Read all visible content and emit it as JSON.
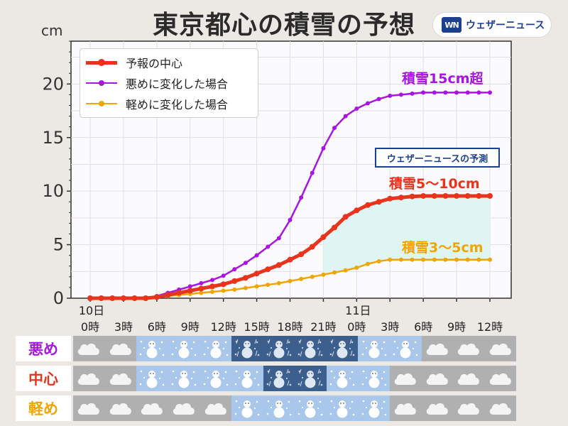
{
  "header": {
    "title": "東京都心の積雪の予想",
    "logo_mark": "WN",
    "logo_text": "ウェザーニュース"
  },
  "colors": {
    "center": "#e8341c",
    "heavy": "#a814e0",
    "light": "#f0a500",
    "fill": "#dff5f3",
    "badge": "#1d3f8f"
  },
  "badge": "ウェザーニュースの予測",
  "annotations": [
    {
      "id": "heavy",
      "text": "積雪15cm超",
      "color": "#a814e0"
    },
    {
      "id": "center",
      "text": "積雪5〜10cm",
      "color": "#e8341c"
    },
    {
      "id": "light",
      "text": "積雪3〜5cm",
      "color": "#f0a500"
    }
  ],
  "chart_data": {
    "type": "line",
    "ylabel": "cm",
    "ylim": [
      0,
      24
    ],
    "yticks": [
      0,
      5,
      10,
      15,
      20
    ],
    "xlim": [
      0,
      36
    ],
    "x_date_labels": [
      {
        "x": 0,
        "label": "10日"
      },
      {
        "x": 24,
        "label": "11日"
      }
    ],
    "x_ticks": [
      {
        "x": 0,
        "label": "0時"
      },
      {
        "x": 3,
        "label": "3時"
      },
      {
        "x": 6,
        "label": "6時"
      },
      {
        "x": 9,
        "label": "9時"
      },
      {
        "x": 12,
        "label": "12時"
      },
      {
        "x": 15,
        "label": "15時"
      },
      {
        "x": 18,
        "label": "18時"
      },
      {
        "x": 21,
        "label": "21時"
      },
      {
        "x": 24,
        "label": "0時"
      },
      {
        "x": 27,
        "label": "3時"
      },
      {
        "x": 30,
        "label": "6時"
      },
      {
        "x": 33,
        "label": "9時"
      },
      {
        "x": 36,
        "label": "12時"
      }
    ],
    "legend_position": "top-left",
    "grid": true,
    "series": [
      {
        "id": "center",
        "name": "予報の中心",
        "color": "#e8341c",
        "line_width": 5,
        "dot": 4,
        "x": [
          0,
          1,
          2,
          3,
          4,
          5,
          6,
          7,
          8,
          9,
          10,
          11,
          12,
          13,
          14,
          15,
          16,
          17,
          18,
          19,
          20,
          21,
          22,
          23,
          24,
          25,
          26,
          27,
          28,
          29,
          30,
          31,
          32,
          33,
          34,
          35,
          36
        ],
        "values": [
          0,
          0,
          0,
          0,
          0,
          0,
          0.1,
          0.3,
          0.5,
          0.7,
          0.9,
          1.1,
          1.3,
          1.6,
          1.9,
          2.3,
          2.7,
          3.1,
          3.6,
          4.1,
          4.8,
          5.7,
          6.6,
          7.6,
          8.2,
          8.7,
          9.0,
          9.3,
          9.4,
          9.5,
          9.55,
          9.55,
          9.55,
          9.55,
          9.55,
          9.55,
          9.55
        ]
      },
      {
        "id": "heavy",
        "name": "悪めに変化した場合",
        "color": "#a814e0",
        "line_width": 2.5,
        "dot": 3,
        "x": [
          0,
          1,
          2,
          3,
          4,
          5,
          6,
          7,
          8,
          9,
          10,
          11,
          12,
          13,
          14,
          15,
          16,
          17,
          18,
          19,
          20,
          21,
          22,
          23,
          24,
          25,
          26,
          27,
          28,
          29,
          30,
          31,
          32,
          33,
          34,
          35,
          36
        ],
        "values": [
          0,
          0,
          0,
          0,
          0,
          0,
          0.2,
          0.5,
          0.8,
          1.1,
          1.4,
          1.7,
          2.1,
          2.7,
          3.3,
          4.0,
          4.8,
          5.6,
          7.3,
          9.4,
          11.7,
          14.0,
          15.9,
          17.0,
          17.7,
          18.2,
          18.6,
          18.9,
          19.0,
          19.1,
          19.2,
          19.2,
          19.2,
          19.2,
          19.2,
          19.2,
          19.2
        ]
      },
      {
        "id": "light",
        "name": "軽めに変化した場合",
        "color": "#f0a500",
        "line_width": 2.5,
        "dot": 3,
        "x": [
          0,
          1,
          2,
          3,
          4,
          5,
          6,
          7,
          8,
          9,
          10,
          11,
          12,
          13,
          14,
          15,
          16,
          17,
          18,
          19,
          20,
          21,
          22,
          23,
          24,
          25,
          26,
          27,
          28,
          29,
          30,
          31,
          32,
          33,
          34,
          35,
          36
        ],
        "values": [
          0,
          0,
          0,
          0,
          0,
          0,
          0.1,
          0.2,
          0.3,
          0.4,
          0.5,
          0.6,
          0.7,
          0.8,
          0.95,
          1.1,
          1.25,
          1.4,
          1.6,
          1.8,
          2.0,
          2.2,
          2.4,
          2.6,
          2.85,
          3.2,
          3.45,
          3.6,
          3.6,
          3.6,
          3.6,
          3.6,
          3.6,
          3.6,
          3.6,
          3.6,
          3.6
        ]
      }
    ]
  },
  "weather_grid": {
    "rows": [
      {
        "label": "悪め",
        "color": "#a814e0",
        "cells": [
          "cloud",
          "cloud",
          "snow",
          "snow",
          "snow",
          "heavy",
          "heavy",
          "heavy",
          "heavy",
          "snow",
          "snow",
          "cloud",
          "cloud",
          "cloud"
        ]
      },
      {
        "label": "中心",
        "color": "#e8341c",
        "cells": [
          "cloud",
          "cloud",
          "snow",
          "snow",
          "snow",
          "snow",
          "heavy",
          "heavy",
          "snow",
          "snow",
          "cloud",
          "cloud",
          "cloud",
          "cloud"
        ]
      },
      {
        "label": "軽め",
        "color": "#f0a500",
        "cells": [
          "cloud",
          "cloud",
          "cloud",
          "cloud",
          "cloud",
          "snow",
          "snow",
          "snow",
          "snow",
          "snow",
          "cloud",
          "cloud",
          "cloud",
          "cloud"
        ]
      }
    ]
  }
}
